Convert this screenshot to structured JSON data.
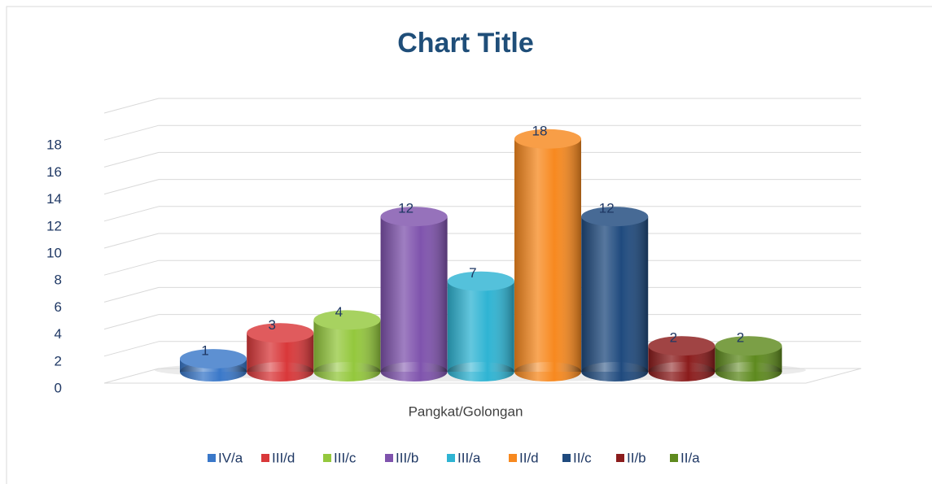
{
  "chart_data": {
    "type": "bar",
    "title": "Chart Title",
    "categories": [
      "Pangkat/Golongan"
    ],
    "series": [
      {
        "name": "IV/a",
        "color": "#3a78c9",
        "values": [
          1
        ]
      },
      {
        "name": "III/d",
        "color": "#d9383a",
        "values": [
          3
        ]
      },
      {
        "name": "III/c",
        "color": "#94c83d",
        "values": [
          4
        ]
      },
      {
        "name": "III/b",
        "color": "#7f53ad",
        "values": [
          12
        ]
      },
      {
        "name": "III/a",
        "color": "#2fb4d3",
        "values": [
          7
        ]
      },
      {
        "name": "II/d",
        "color": "#f7891f",
        "values": [
          18
        ]
      },
      {
        "name": "II/c",
        "color": "#1f4a7e",
        "values": [
          12
        ]
      },
      {
        "name": "II/b",
        "color": "#8b1c1c",
        "values": [
          2
        ]
      },
      {
        "name": "II/a",
        "color": "#5e8a1e",
        "values": [
          2
        ]
      }
    ],
    "ylim": [
      0,
      20
    ],
    "yticks": [
      0,
      2,
      4,
      6,
      8,
      10,
      12,
      14,
      16,
      18
    ],
    "grid": true,
    "legend": "bottom"
  }
}
